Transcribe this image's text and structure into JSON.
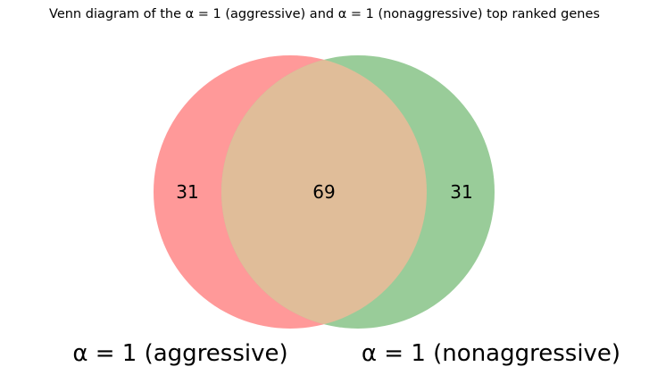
{
  "title": "Venn diagram of the α = 1 (aggressive) and α = 1 (nonaggressive) top ranked genes",
  "sets": {
    "a": {
      "label": "α = 1 (aggressive)",
      "color": "#ff9999"
    },
    "b": {
      "label": "α = 1 (nonaggressive)",
      "color": "#99cc99"
    }
  },
  "overlap_color": "#e0bd99",
  "counts": {
    "only_a": "31",
    "both": "69",
    "only_b": "31"
  }
}
